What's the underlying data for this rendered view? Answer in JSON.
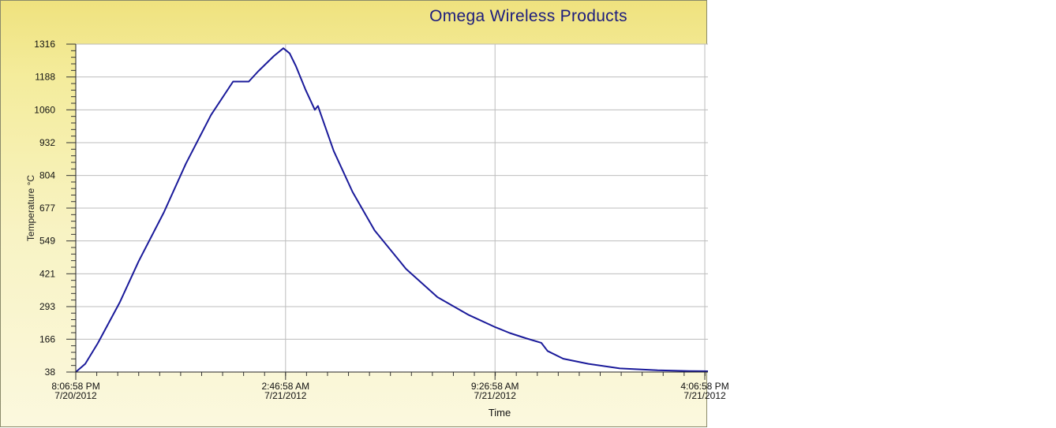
{
  "window": {
    "title": "Omega Wireless Products"
  },
  "chart_data": {
    "type": "line",
    "title": "Omega Wireless Products",
    "xlabel": "Time",
    "ylabel": "Temperature °C",
    "ylim": [
      38,
      1316
    ],
    "y_ticks": [
      38,
      166,
      293,
      421,
      549,
      677,
      804,
      932,
      1060,
      1188,
      1316
    ],
    "x_ticks": [
      {
        "value": 0,
        "line1": "8:06:58 PM",
        "line2": "7/20/2012"
      },
      {
        "value": 6.67,
        "line1": "2:46:58 AM",
        "line2": "7/21/2012"
      },
      {
        "value": 13.33,
        "line1": "9:26:58 AM",
        "line2": "7/21/2012"
      },
      {
        "value": 20,
        "line1": "4:06:58 PM",
        "line2": "7/21/2012"
      }
    ],
    "xlim": [
      0,
      20.1
    ],
    "x_unit": "hours since 8:06:58 PM 7/20/2012",
    "grid": true,
    "series": [
      {
        "color": "#1a1a9a",
        "x": [
          0.0,
          0.3,
          0.7,
          1.4,
          2.0,
          2.8,
          3.5,
          4.3,
          5.0,
          5.5,
          5.8,
          6.3,
          6.6,
          6.8,
          7.0,
          7.3,
          7.6,
          7.7,
          7.8,
          8.2,
          8.8,
          9.5,
          10.5,
          11.5,
          12.5,
          13.3,
          13.8,
          14.3,
          14.8,
          15.0,
          15.5,
          16.3,
          17.3,
          18.5,
          19.5,
          20.1
        ],
        "y": [
          38,
          70,
          150,
          310,
          470,
          660,
          850,
          1040,
          1170,
          1170,
          1210,
          1270,
          1300,
          1280,
          1230,
          1140,
          1060,
          1075,
          1040,
          900,
          740,
          590,
          440,
          330,
          260,
          215,
          190,
          170,
          152,
          120,
          90,
          70,
          52,
          45,
          42,
          41
        ]
      }
    ]
  }
}
